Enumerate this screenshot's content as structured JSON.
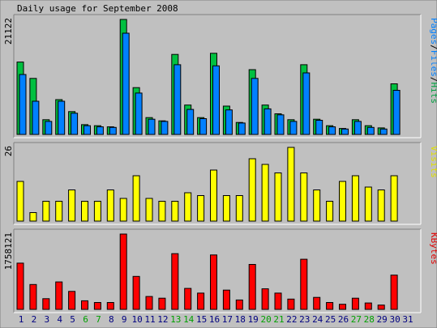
{
  "chart_data": {
    "type": "bar",
    "title": "Daily usage for September 2008",
    "days": [
      "1",
      "2",
      "3",
      "4",
      "5",
      "6",
      "7",
      "8",
      "9",
      "10",
      "11",
      "12",
      "13",
      "14",
      "15",
      "16",
      "17",
      "18",
      "19",
      "20",
      "21",
      "22",
      "23",
      "24",
      "25",
      "26",
      "27",
      "28",
      "29",
      "30",
      "31"
    ],
    "weekend_days": [
      "6",
      "7",
      "13",
      "14",
      "20",
      "21",
      "27",
      "28"
    ],
    "panels": [
      {
        "id": "hits",
        "ymax_label": "21122",
        "ymax": 21122,
        "right_label": [
          {
            "text": "Pages",
            "color": "#0080ff"
          },
          {
            "text": "/",
            "color": "#000000"
          },
          {
            "text": "Files",
            "color": "#0080ff"
          },
          {
            "text": "/",
            "color": "#000000"
          },
          {
            "text": "Hits",
            "color": "#00a040"
          }
        ],
        "series": [
          {
            "name": "Hits",
            "color": "#00c040",
            "values": [
              13300,
              10300,
              2700,
              6400,
              4200,
              1800,
              1600,
              1400,
              21122,
              8600,
              3100,
              2500,
              14700,
              5400,
              3100,
              14900,
              5200,
              2200,
              11900,
              5400,
              3800,
              2700,
              12800,
              2800,
              1600,
              1100,
              2700,
              1600,
              1200,
              9300,
              0
            ]
          },
          {
            "name": "Files",
            "color": "#0080ff",
            "values": [
              11000,
              6100,
              2400,
              6100,
              3900,
              1600,
              1400,
              1300,
              18600,
              7600,
              2800,
              2400,
              12800,
              4600,
              2900,
              12600,
              4500,
              2100,
              10300,
              4700,
              3600,
              2400,
              11300,
              2600,
              1400,
              1000,
              2400,
              1300,
              1000,
              8100,
              0
            ]
          }
        ]
      },
      {
        "id": "visits",
        "ymax_label": "26",
        "ymax": 26,
        "right_label": [
          {
            "text": "Visits",
            "color": "#e0e000"
          }
        ],
        "series": [
          {
            "name": "Visits",
            "color": "#ffff00",
            "values": [
              14,
              3,
              7,
              7,
              11,
              7,
              7,
              11,
              8,
              16,
              8,
              7,
              7,
              10,
              9,
              18,
              9,
              9,
              22,
              20,
              17,
              26,
              17,
              11,
              7,
              14,
              16,
              12,
              11,
              16,
              0
            ]
          }
        ]
      },
      {
        "id": "kbytes",
        "ymax_label": "1758121",
        "ymax": 1758121,
        "right_label": [
          {
            "text": "KBytes",
            "color": "#e00000"
          }
        ],
        "series": [
          {
            "name": "KBytes",
            "color": "#ff0000",
            "values": [
              1080000,
              580000,
              250000,
              640000,
              420000,
              200000,
              160000,
              160000,
              1758121,
              770000,
              300000,
              260000,
              1300000,
              490000,
              380000,
              1270000,
              450000,
              220000,
              1050000,
              480000,
              380000,
              240000,
              1170000,
              280000,
              160000,
              120000,
              260000,
              150000,
              100000,
              800000,
              0
            ]
          }
        ]
      }
    ],
    "colors": {
      "background": "#c0c0c0",
      "weekday_label": "#000080",
      "weekend_label": "#00a000"
    }
  }
}
